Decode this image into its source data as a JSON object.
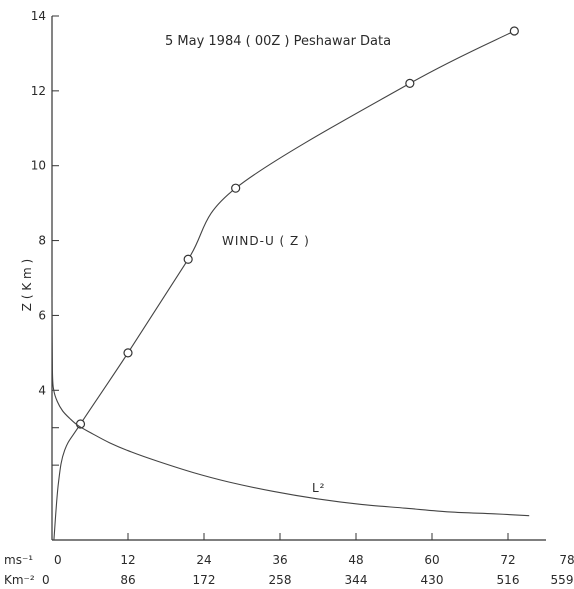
{
  "chart_data": {
    "type": "line",
    "title": "5 May 1984 ( 00Z ) Peshawar Data",
    "ylabel": "Z ( K m )",
    "ylim": [
      0,
      14
    ],
    "y_ticks": [
      "4",
      "6",
      "8",
      "10",
      "12",
      "14"
    ],
    "x_axes": [
      {
        "label": "ms⁻¹",
        "range": [
          0,
          78
        ],
        "ticks": [
          "0",
          "12",
          "24",
          "36",
          "48",
          "60",
          "72",
          "78"
        ]
      },
      {
        "label": "Km⁻²",
        "range": [
          0,
          559
        ],
        "ticks": [
          "0",
          "86",
          "172",
          "258",
          "344",
          "430",
          "516",
          "559"
        ]
      }
    ],
    "series": [
      {
        "name": "WIND-U ( Z )",
        "axis": "ms⁻¹",
        "markers": true,
        "x": [
          0.3,
          1.0,
          2.0,
          4.5,
          12.0,
          21.5,
          29.0,
          56.5,
          73.0
        ],
        "y": [
          0.0,
          1.5,
          2.4,
          3.1,
          5.0,
          7.5,
          9.4,
          12.2,
          13.6
        ],
        "marker_x": [
          4.5,
          12.0,
          21.5,
          29.0,
          56.5,
          73.0
        ],
        "marker_y": [
          3.1,
          5.0,
          7.5,
          9.4,
          12.2,
          13.6
        ]
      },
      {
        "name": "L²",
        "axis": "Km⁻²",
        "markers": false,
        "x": [
          0,
          0.5,
          2,
          6,
          12,
          20,
          30,
          45,
          65,
          90,
          120,
          160,
          200,
          250,
          300,
          350,
          400,
          450,
          500,
          540
        ],
        "y": [
          6.5,
          4.5,
          4.0,
          3.7,
          3.45,
          3.25,
          3.05,
          2.85,
          2.6,
          2.35,
          2.1,
          1.8,
          1.55,
          1.3,
          1.1,
          0.95,
          0.85,
          0.75,
          0.7,
          0.65
        ]
      }
    ]
  }
}
